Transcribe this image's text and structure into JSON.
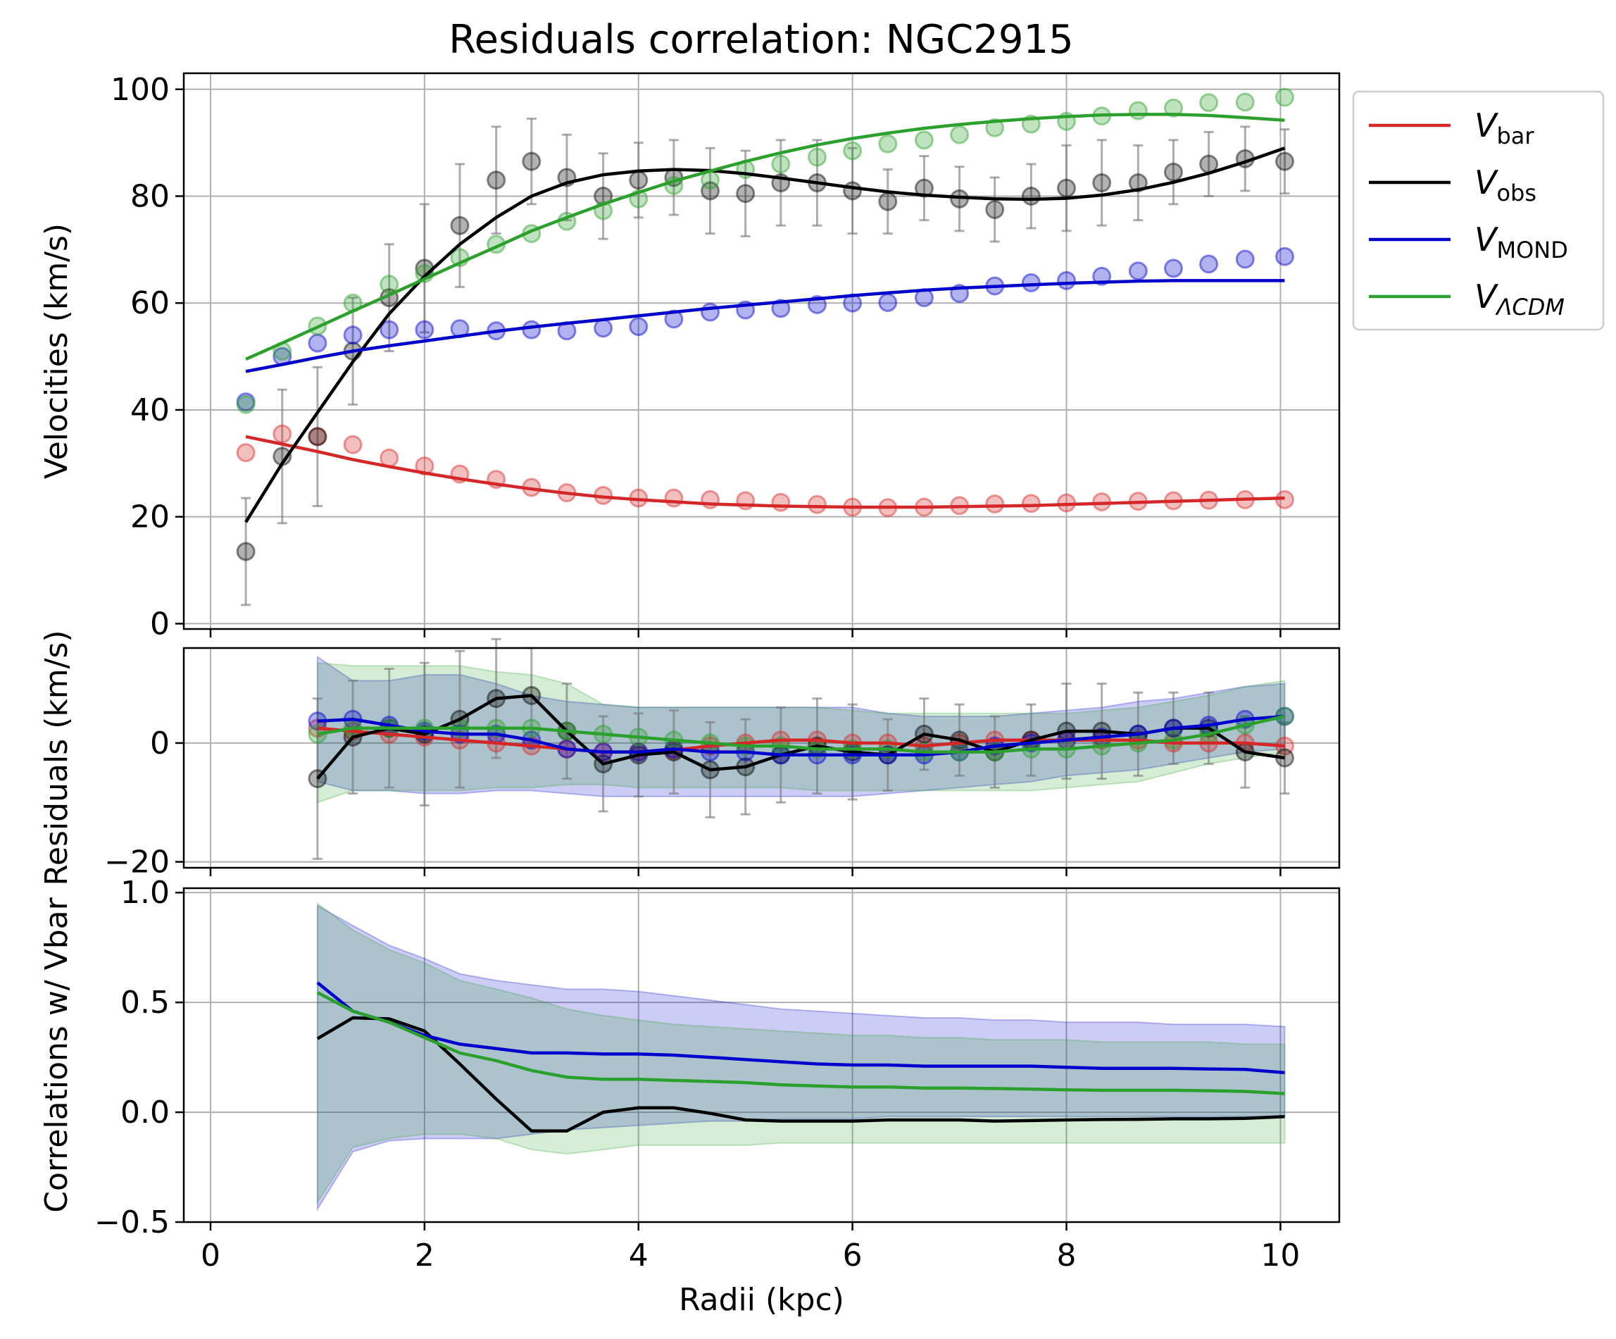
{
  "chart_data": [
    {
      "panel": "velocities",
      "type": "line",
      "title": "Residuals correlation: NGC2915",
      "ylabel": "Velocities (km/s)",
      "xlim": [
        -0.25,
        10.55
      ],
      "ylim": [
        -1,
        103
      ],
      "xticks": [
        0,
        2,
        4,
        6,
        8,
        10
      ],
      "yticks": [
        0,
        20,
        40,
        60,
        80,
        100
      ],
      "ytick_labels": [
        "0",
        "20",
        "40",
        "60",
        "80",
        "100"
      ],
      "grid": true,
      "legend": "outside-upper-right",
      "points_x": [
        0.33,
        0.67,
        1.0,
        1.33,
        1.67,
        2.0,
        2.33,
        2.67,
        3.0,
        3.33,
        3.67,
        4.0,
        4.33,
        4.67,
        5.0,
        5.33,
        5.67,
        6.0,
        6.33,
        6.67,
        7.0,
        7.33,
        7.67,
        8.0,
        8.33,
        8.67,
        9.0,
        9.33,
        9.67,
        10.04
      ],
      "series": [
        {
          "name": "V_bar",
          "color": "#d62728",
          "points_y": [
            32,
            35.5,
            35,
            33.5,
            31,
            29.5,
            28,
            27,
            25.5,
            24.5,
            24,
            23.5,
            23.5,
            23.2,
            23,
            22.7,
            22.3,
            21.8,
            21.7,
            21.8,
            22.1,
            22.4,
            22.5,
            22.6,
            22.8,
            22.9,
            23.0,
            23.1,
            23.2,
            23.2
          ],
          "fit_y": [
            35,
            33.6,
            32.2,
            30.7,
            29.4,
            28.2,
            27.1,
            26.1,
            25.2,
            24.4,
            23.7,
            23.2,
            22.8,
            22.4,
            22.2,
            22.0,
            21.9,
            21.8,
            21.8,
            21.8,
            21.9,
            22.0,
            22.1,
            22.3,
            22.5,
            22.7,
            22.9,
            23.1,
            23.3,
            23.5
          ]
        },
        {
          "name": "V_obs",
          "color": "#000000",
          "points_y": [
            13.5,
            31.3,
            35,
            51,
            61,
            66.5,
            74.5,
            83,
            86.5,
            83.5,
            80,
            83,
            83.5,
            81,
            80.5,
            82.5,
            82.5,
            81,
            79,
            81.5,
            79.5,
            77.5,
            80,
            81.5,
            82.5,
            82.5,
            84.5,
            86,
            87,
            86.5
          ],
          "errors": [
            10,
            12.5,
            13,
            10,
            10,
            12,
            11.5,
            10,
            8,
            8,
            8,
            7,
            7,
            8,
            8,
            8,
            8,
            8,
            6,
            6,
            6,
            6,
            6,
            8,
            8,
            7,
            6,
            6,
            6,
            6
          ],
          "fit_y": [
            19,
            30,
            39.5,
            49,
            58,
            65,
            71,
            76,
            80,
            82.5,
            84,
            84.7,
            85,
            84.8,
            84.2,
            83.4,
            82.5,
            81.6,
            80.8,
            80.2,
            79.8,
            79.5,
            79.4,
            79.6,
            80.2,
            81.2,
            82.6,
            84.3,
            86.4,
            89
          ]
        },
        {
          "name": "V_MOND",
          "color": "#0000cc",
          "points_y": [
            41.5,
            50,
            52.5,
            54,
            55,
            55,
            55.2,
            54.8,
            55,
            54.8,
            55.3,
            55.6,
            57,
            58.3,
            58.7,
            59,
            59.7,
            60,
            60.1,
            61,
            61.8,
            63.2,
            63.8,
            64.2,
            65,
            66,
            66.5,
            67.3,
            68.2,
            68.7
          ],
          "fit_y": [
            47.2,
            48.5,
            49.8,
            51,
            52,
            52.9,
            53.8,
            54.7,
            55.5,
            56.2,
            56.9,
            57.6,
            58.3,
            59,
            59.6,
            60.2,
            60.8,
            61.4,
            61.9,
            62.4,
            62.8,
            63.1,
            63.4,
            63.7,
            63.9,
            64.1,
            64.2,
            64.2,
            64.2,
            64.2
          ]
        },
        {
          "name": "V_ΛCDM",
          "color": "#2ca02c",
          "points_y": [
            41,
            51,
            55.7,
            60,
            63.5,
            65.5,
            68.5,
            71,
            73,
            75.3,
            77.3,
            79.5,
            82,
            83,
            85,
            86,
            87.3,
            88.5,
            89.8,
            90.5,
            91.5,
            92.8,
            93.5,
            94,
            95,
            96,
            96.5,
            97.5,
            97.6,
            98.5
          ],
          "fit_y": [
            49.5,
            52.5,
            55.5,
            58.5,
            61.5,
            64.5,
            67.5,
            70.5,
            73.5,
            76,
            78.5,
            80.7,
            82.8,
            84.7,
            86.5,
            88.1,
            89.6,
            90.8,
            91.8,
            92.7,
            93.4,
            94,
            94.5,
            94.9,
            95.2,
            95.3,
            95.3,
            95.1,
            94.7,
            94.2
          ]
        }
      ],
      "legend_entries": [
        {
          "base": "V",
          "sub": "bar",
          "color": "#d62728"
        },
        {
          "base": "V",
          "sub": "obs",
          "color": "#000000"
        },
        {
          "base": "V",
          "sub": "MOND",
          "color": "#0000cc"
        },
        {
          "base": "V",
          "sub": "ΛCDM",
          "color": "#2ca02c"
        }
      ]
    },
    {
      "panel": "residuals",
      "type": "line",
      "ylabel": "Residuals (km/s)",
      "xlim": [
        -0.25,
        10.55
      ],
      "ylim": [
        -21,
        16
      ],
      "yticks": [
        -20,
        0
      ],
      "ytick_labels": [
        "−20",
        "0"
      ],
      "grid": true,
      "x": [
        1.0,
        1.33,
        1.67,
        2.0,
        2.33,
        2.67,
        3.0,
        3.33,
        3.67,
        4.0,
        4.33,
        4.67,
        5.0,
        5.33,
        5.67,
        6.0,
        6.33,
        6.67,
        7.0,
        7.33,
        7.67,
        8.0,
        8.33,
        8.67,
        9.0,
        9.33,
        9.67,
        10.04
      ],
      "series": [
        {
          "name": "V_bar",
          "color": "#d62728",
          "values": [
            2.5,
            2,
            1.5,
            1,
            0.5,
            0,
            -0.5,
            -1,
            -1.5,
            -1.5,
            -1.2,
            -0.5,
            0,
            0.5,
            0.5,
            0,
            0,
            -0.5,
            0,
            0.5,
            0.5,
            0.5,
            0.5,
            0.5,
            0,
            0,
            0,
            -0.5
          ]
        },
        {
          "name": "V_obs",
          "color": "#000000",
          "values": [
            -6,
            1,
            2.5,
            1.5,
            4,
            7.5,
            8,
            2,
            -3.5,
            -2,
            -1.5,
            -4.5,
            -4,
            -2,
            -0.5,
            -1.5,
            -2,
            1.5,
            0.5,
            -1.5,
            0.5,
            2,
            2,
            1.5,
            2.5,
            2.5,
            -1.5,
            -2.5
          ],
          "errors": [
            13.5,
            9.5,
            10,
            12,
            11.5,
            10,
            8,
            8,
            8,
            7,
            7,
            8,
            8,
            8,
            8,
            8,
            6,
            6,
            6,
            6,
            6,
            8,
            8,
            7,
            6,
            6,
            6,
            6
          ]
        },
        {
          "name": "V_MOND",
          "color": "#0000cc",
          "values": [
            3.7,
            4,
            3,
            2,
            1.5,
            1.5,
            0.5,
            -1,
            -1.5,
            -1.5,
            -1,
            -1.5,
            -1.5,
            -2,
            -2,
            -2,
            -2,
            -2,
            -1.5,
            -0.5,
            0,
            0.5,
            1,
            1.5,
            2.5,
            3,
            4,
            4.5
          ],
          "band_upper": [
            14.5,
            10.5,
            10.5,
            11.5,
            11.5,
            10,
            8,
            7,
            6.5,
            6,
            6,
            6,
            6,
            6,
            6,
            6,
            5,
            4.5,
            4.5,
            4.5,
            5,
            5.5,
            6,
            7,
            7.5,
            8.5,
            9.5,
            10
          ],
          "band_lower": [
            -6.5,
            -8,
            -8,
            -8.5,
            -8.5,
            -8,
            -8,
            -8.5,
            -9,
            -9,
            -9,
            -9,
            -9,
            -9,
            -9,
            -9,
            -8.5,
            -8,
            -7.5,
            -7,
            -6.5,
            -5.5,
            -5,
            -4.5,
            -3.5,
            -2.5,
            -1.5,
            -1
          ]
        },
        {
          "name": "V_ΛCDM",
          "color": "#2ca02c",
          "values": [
            1.5,
            2.5,
            2.5,
            2.5,
            2.5,
            2.5,
            2.5,
            2,
            1.5,
            1,
            0.5,
            0,
            -0.5,
            -0.5,
            -1,
            -1,
            -1,
            -1.5,
            -1.5,
            -1.5,
            -1,
            -1,
            -0.5,
            0,
            0.5,
            1.5,
            3,
            4.5
          ],
          "band_upper": [
            13.5,
            13,
            13,
            13,
            13,
            12,
            11.5,
            10,
            6.5,
            6,
            6,
            6,
            6,
            6,
            6,
            5.5,
            5,
            5,
            5,
            5,
            5,
            5,
            5.5,
            6,
            7,
            8,
            9.5,
            10.5
          ],
          "band_lower": [
            -10,
            -8,
            -8,
            -8,
            -8,
            -7.5,
            -7.5,
            -7,
            -7,
            -7.5,
            -7.5,
            -7.5,
            -7.5,
            -7.5,
            -8,
            -8,
            -8,
            -8,
            -8,
            -8,
            -8,
            -7.5,
            -7,
            -6.5,
            -5,
            -3.5,
            -2.5,
            -1.5
          ]
        }
      ]
    },
    {
      "panel": "correlations",
      "type": "line",
      "ylabel": "Correlations w/ Vbar",
      "xlabel": "Radii (kpc)",
      "xlim": [
        -0.25,
        10.55
      ],
      "ylim": [
        -0.5,
        1.02
      ],
      "xticks": [
        0,
        2,
        4,
        6,
        8,
        10
      ],
      "xtick_labels": [
        "0",
        "2",
        "4",
        "6",
        "8",
        "10"
      ],
      "yticks": [
        -0.5,
        0.0,
        0.5,
        1.0
      ],
      "ytick_labels": [
        "−0.5",
        "0.0",
        "0.5",
        "1.0"
      ],
      "grid": true,
      "x": [
        1.0,
        1.33,
        1.67,
        2.0,
        2.33,
        2.67,
        3.0,
        3.33,
        3.67,
        4.0,
        4.33,
        4.67,
        5.0,
        5.33,
        5.67,
        6.0,
        6.33,
        6.67,
        7.0,
        7.33,
        7.67,
        8.0,
        8.33,
        8.67,
        9.0,
        9.33,
        9.67,
        10.04
      ],
      "series": [
        {
          "name": "V_obs",
          "color": "#000000",
          "values": [
            0.335,
            0.43,
            0.425,
            0.37,
            0.22,
            0.06,
            -0.085,
            -0.085,
            0.0,
            0.02,
            0.02,
            -0.005,
            -0.035,
            -0.04,
            -0.04,
            -0.04,
            -0.035,
            -0.035,
            -0.035,
            -0.04,
            -0.038,
            -0.035,
            -0.033,
            -0.032,
            -0.03,
            -0.03,
            -0.028,
            -0.02
          ]
        },
        {
          "name": "V_MOND",
          "color": "#0000cc",
          "values": [
            0.59,
            0.46,
            0.41,
            0.35,
            0.31,
            0.29,
            0.27,
            0.27,
            0.265,
            0.265,
            0.26,
            0.25,
            0.24,
            0.23,
            0.22,
            0.215,
            0.215,
            0.21,
            0.21,
            0.21,
            0.21,
            0.205,
            0.2,
            0.2,
            0.2,
            0.197,
            0.195,
            0.18
          ],
          "band_upper": [
            0.94,
            0.85,
            0.76,
            0.7,
            0.63,
            0.6,
            0.58,
            0.56,
            0.56,
            0.55,
            0.53,
            0.51,
            0.49,
            0.47,
            0.46,
            0.45,
            0.44,
            0.43,
            0.43,
            0.42,
            0.42,
            0.41,
            0.41,
            0.41,
            0.4,
            0.4,
            0.4,
            0.39
          ],
          "band_lower": [
            -0.44,
            -0.18,
            -0.13,
            -0.12,
            -0.12,
            -0.12,
            -0.1,
            -0.08,
            -0.07,
            -0.06,
            -0.05,
            -0.04,
            -0.04,
            -0.03,
            -0.03,
            -0.03,
            -0.02,
            -0.02,
            -0.02,
            -0.02,
            -0.02,
            -0.02,
            -0.02,
            -0.02,
            -0.02,
            -0.02,
            -0.02,
            -0.02
          ]
        },
        {
          "name": "V_ΛCDM",
          "color": "#2ca02c",
          "values": [
            0.545,
            0.46,
            0.41,
            0.34,
            0.27,
            0.235,
            0.19,
            0.16,
            0.15,
            0.15,
            0.145,
            0.14,
            0.135,
            0.125,
            0.12,
            0.115,
            0.115,
            0.11,
            0.11,
            0.108,
            0.105,
            0.102,
            0.1,
            0.1,
            0.1,
            0.098,
            0.095,
            0.085
          ],
          "band_upper": [
            0.95,
            0.83,
            0.74,
            0.68,
            0.6,
            0.56,
            0.52,
            0.47,
            0.44,
            0.42,
            0.4,
            0.39,
            0.38,
            0.37,
            0.36,
            0.35,
            0.35,
            0.34,
            0.34,
            0.33,
            0.33,
            0.33,
            0.32,
            0.32,
            0.32,
            0.32,
            0.31,
            0.31
          ],
          "band_lower": [
            -0.41,
            -0.16,
            -0.12,
            -0.1,
            -0.1,
            -0.12,
            -0.17,
            -0.19,
            -0.17,
            -0.15,
            -0.15,
            -0.15,
            -0.15,
            -0.14,
            -0.14,
            -0.14,
            -0.14,
            -0.14,
            -0.14,
            -0.14,
            -0.14,
            -0.14,
            -0.14,
            -0.14,
            -0.14,
            -0.14,
            -0.14,
            -0.14
          ]
        }
      ]
    }
  ]
}
